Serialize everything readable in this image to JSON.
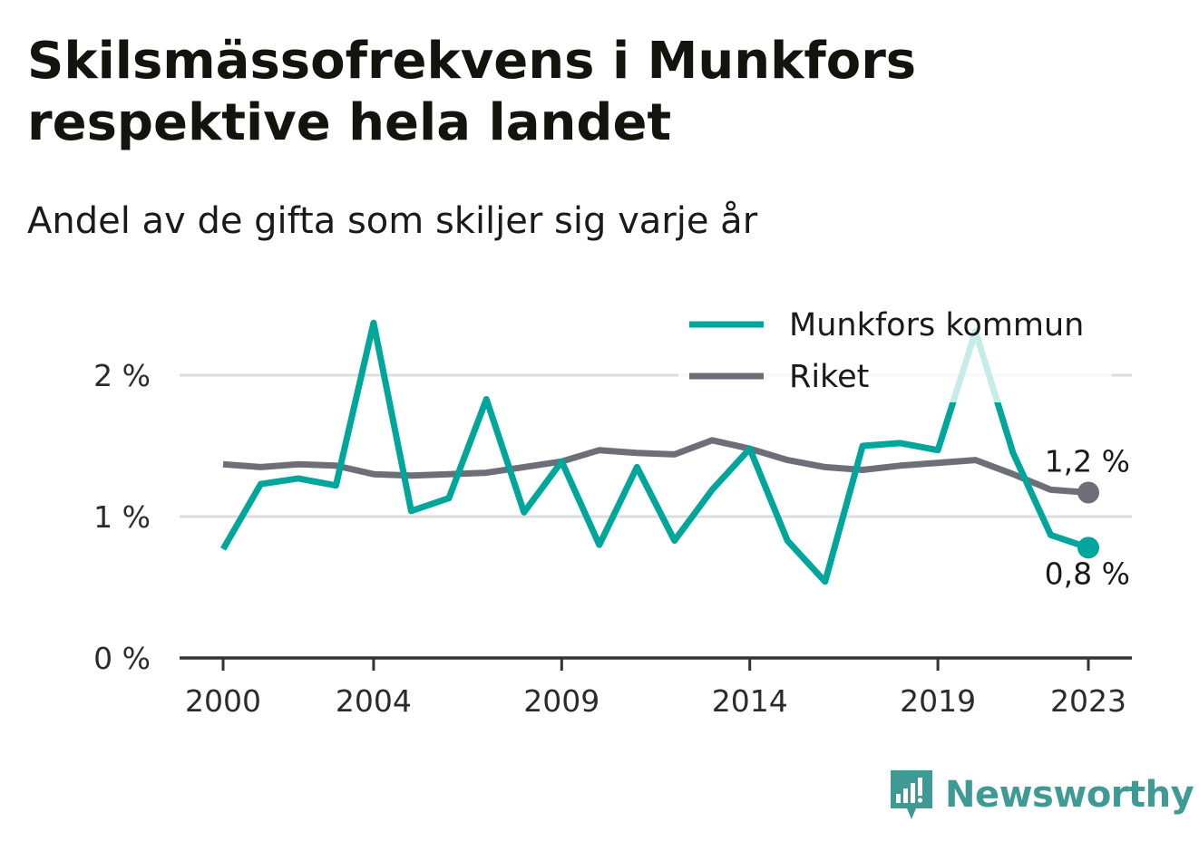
{
  "chart_data": {
    "type": "line",
    "title": "Skilsmässofrekvens i Munkfors respektive hela landet",
    "subtitle": "Andel av de gifta som skiljer sig varje år",
    "x": [
      2000,
      2001,
      2002,
      2003,
      2004,
      2005,
      2006,
      2007,
      2008,
      2009,
      2010,
      2011,
      2012,
      2013,
      2014,
      2015,
      2016,
      2017,
      2018,
      2019,
      2020,
      2021,
      2022,
      2023
    ],
    "x_tick_labels": [
      "2000",
      "2004",
      "2009",
      "2014",
      "2019",
      "2023"
    ],
    "y_tick_labels": [
      "0 %",
      "1 %",
      "2 %"
    ],
    "ylim": [
      0,
      2.4
    ],
    "grid": "horizontal",
    "legend_placement": "top-right",
    "series": [
      {
        "name": "Munkfors kommun",
        "color": "#00a59b",
        "values": [
          0.77,
          1.23,
          1.27,
          1.22,
          2.37,
          1.04,
          1.13,
          1.83,
          1.03,
          1.39,
          0.8,
          1.35,
          0.83,
          1.19,
          1.48,
          0.83,
          0.54,
          1.5,
          1.52,
          1.47,
          2.31,
          1.45,
          0.87,
          0.78
        ],
        "end_label": "0,8 %"
      },
      {
        "name": "Riket",
        "color": "#6e6e78",
        "values": [
          1.37,
          1.35,
          1.37,
          1.36,
          1.3,
          1.29,
          1.3,
          1.31,
          1.35,
          1.39,
          1.47,
          1.45,
          1.44,
          1.54,
          1.48,
          1.4,
          1.35,
          1.33,
          1.36,
          1.38,
          1.4,
          1.3,
          1.19,
          1.17
        ],
        "end_label": "1,2 %"
      }
    ]
  },
  "brand": {
    "name": "Newsworthy",
    "icon": "newsworthy-logo-icon",
    "color": "#3f9994"
  }
}
